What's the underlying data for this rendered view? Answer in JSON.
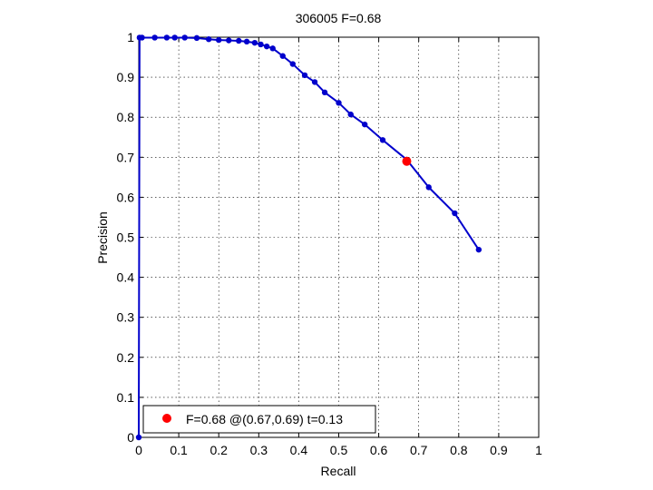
{
  "chart_data": {
    "type": "line",
    "title": "306005 F=0.68",
    "xlabel": "Recall",
    "ylabel": "Precision",
    "xlim": [
      0,
      1
    ],
    "ylim": [
      0,
      1
    ],
    "xticks": [
      0,
      0.1,
      0.2,
      0.3,
      0.4,
      0.5,
      0.6,
      0.7,
      0.8,
      0.9,
      1
    ],
    "yticks": [
      0,
      0.1,
      0.2,
      0.3,
      0.4,
      0.5,
      0.6,
      0.7,
      0.8,
      0.9,
      1
    ],
    "xtick_labels": [
      "0",
      "0.1",
      "0.2",
      "0.3",
      "0.4",
      "0.5",
      "0.6",
      "0.7",
      "0.8",
      "0.9",
      "1"
    ],
    "ytick_labels": [
      "0",
      "0.1",
      "0.2",
      "0.3",
      "0.4",
      "0.5",
      "0.6",
      "0.7",
      "0.8",
      "0.9",
      "1"
    ],
    "grid": true,
    "legend_position": "bottom-left",
    "series": [
      {
        "color": "#0000cc",
        "marker": "dot",
        "x": [
          0,
          0.002,
          0.008,
          0.04,
          0.07,
          0.09,
          0.115,
          0.145,
          0.175,
          0.2,
          0.225,
          0.25,
          0.27,
          0.29,
          0.305,
          0.32,
          0.335,
          0.36,
          0.385,
          0.415,
          0.44,
          0.465,
          0.5,
          0.53,
          0.565,
          0.61,
          0.67,
          0.725,
          0.79,
          0.85
        ],
        "y": [
          0,
          0.999,
          0.999,
          0.999,
          0.999,
          0.999,
          0.999,
          0.998,
          0.995,
          0.993,
          0.992,
          0.991,
          0.989,
          0.986,
          0.982,
          0.977,
          0.972,
          0.953,
          0.933,
          0.905,
          0.888,
          0.862,
          0.836,
          0.807,
          0.782,
          0.743,
          0.694,
          0.625,
          0.56,
          0.469
        ]
      }
    ],
    "highlight": {
      "x": 0.67,
      "y": 0.69,
      "color": "#ff0000",
      "legend_label": "F=0.68 @(0.67,0.69) t=0.13"
    }
  }
}
